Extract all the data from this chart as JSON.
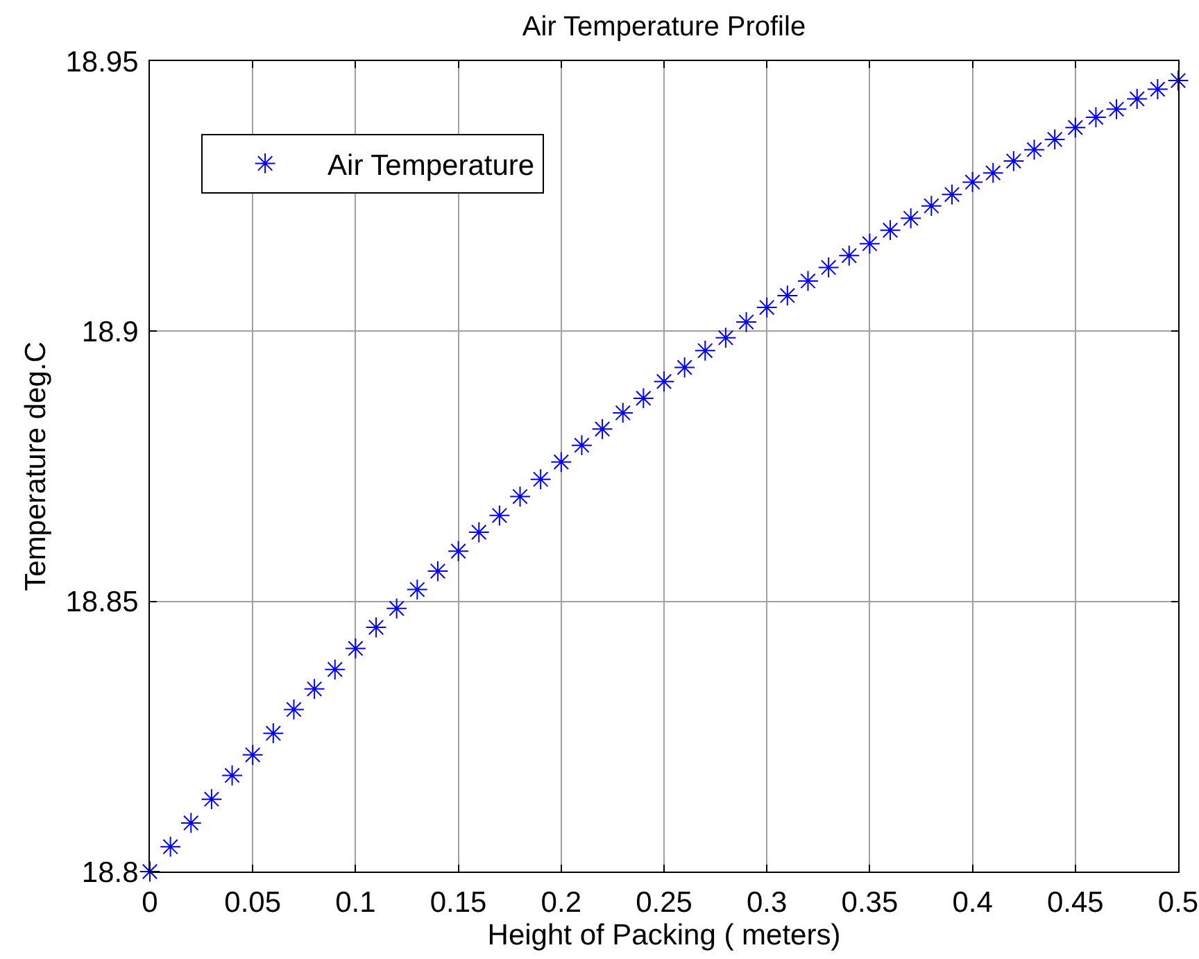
{
  "chart_data": {
    "type": "scatter",
    "title": "Air Temperature Profile",
    "xlabel": "Height of Packing ( meters)",
    "ylabel": "Temperature deg.C",
    "x": [
      0,
      0.01,
      0.02,
      0.03,
      0.04,
      0.05,
      0.06,
      0.07,
      0.08,
      0.09,
      0.1,
      0.11,
      0.12,
      0.13,
      0.14,
      0.15,
      0.16,
      0.17,
      0.18,
      0.19,
      0.2,
      0.21,
      0.22,
      0.23,
      0.24,
      0.25,
      0.26,
      0.27,
      0.28,
      0.29,
      0.3,
      0.31,
      0.32,
      0.33,
      0.34,
      0.35,
      0.36,
      0.37,
      0.38,
      0.39,
      0.4,
      0.41,
      0.42,
      0.43,
      0.44,
      0.45,
      0.46,
      0.47,
      0.48,
      0.49,
      0.5
    ],
    "series": [
      {
        "name": "Air Temperature",
        "color": "#0000ff",
        "values": [
          18.8,
          18.8046,
          18.809,
          18.8134,
          18.8178,
          18.8216,
          18.8256,
          18.83,
          18.8338,
          18.8374,
          18.8413,
          18.8452,
          18.8487,
          18.8522,
          18.8556,
          18.8593,
          18.8628,
          18.8659,
          18.8694,
          18.8726,
          18.8758,
          18.8789,
          18.8819,
          18.8849,
          18.8876,
          18.8907,
          18.8933,
          18.8964,
          18.8988,
          18.9017,
          18.9044,
          18.9066,
          18.9093,
          18.9118,
          18.914,
          18.9162,
          18.9187,
          18.9209,
          18.9232,
          18.9253,
          18.9276,
          18.9293,
          18.9315,
          18.9336,
          18.9355,
          18.9377,
          18.9396,
          18.9411,
          18.943,
          18.9448,
          18.9464
        ]
      }
    ],
    "xlim": [
      0,
      0.5
    ],
    "xticks": [
      0,
      0.05,
      0.1,
      0.15,
      0.2,
      0.25,
      0.3,
      0.35,
      0.4,
      0.45,
      0.5
    ],
    "ylim": [
      18.8,
      18.95
    ],
    "yticks": [
      18.8,
      18.85,
      18.9,
      18.95
    ],
    "grid": true,
    "legend": "top left",
    "marker": "cross"
  }
}
